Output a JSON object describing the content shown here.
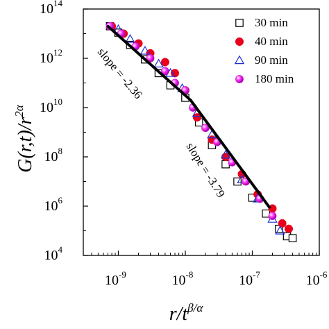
{
  "chart_data": {
    "type": "scatter",
    "xscale": "log",
    "yscale": "log",
    "xlim": [
      3e-10,
      1e-06
    ],
    "ylim": [
      10000.0,
      100000000000000.0
    ],
    "grid": false,
    "legend_placement": "top-right",
    "xlabel": {
      "main": "r/t",
      "sup": "β/α"
    },
    "ylabel": {
      "main": "G(r,t)/r",
      "sup": "2α"
    },
    "x_ticks": [
      {
        "value": 1e-09,
        "base": "10",
        "exp": "-9"
      },
      {
        "value": 1e-08,
        "base": "10",
        "exp": "-8"
      },
      {
        "value": 1e-07,
        "base": "10",
        "exp": "-7"
      },
      {
        "value": 1e-06,
        "base": "10",
        "exp": "-6"
      }
    ],
    "y_ticks": [
      {
        "value": 10000.0,
        "base": "10",
        "exp": "4"
      },
      {
        "value": 1000000.0,
        "base": "10",
        "exp": "6"
      },
      {
        "value": 100000000.0,
        "base": "10",
        "exp": "8"
      },
      {
        "value": 10000000000.0,
        "base": "10",
        "exp": "10"
      },
      {
        "value": 1000000000000.0,
        "base": "10",
        "exp": "12"
      },
      {
        "value": 100000000000000.0,
        "base": "10",
        "exp": "14"
      }
    ],
    "series": [
      {
        "name": "30 min",
        "marker": "open-square",
        "color": "#000000",
        "x": [
          7.5e-10,
          1e-09,
          1.5e-09,
          2.5e-09,
          4e-09,
          6e-09,
          1e-08,
          1.6e-08,
          2.5e-08,
          4e-08,
          6e-08,
          1e-07,
          1.6e-07,
          2.5e-07,
          3.3e-07,
          4e-07
        ],
        "y": [
          20000000000000.0,
          11000000000000.0,
          3500000000000.0,
          900000000000.0,
          250000000000.0,
          80000000000.0,
          25000000000.0,
          2500000000.0,
          300000000.0,
          50000000.0,
          10000000.0,
          2200000.0,
          500000.0,
          120000.0,
          60000.0,
          50000.0
        ]
      },
      {
        "name": "40 min",
        "marker": "filled-circle",
        "color": "#e8001c",
        "x": [
          8e-10,
          1.2e-09,
          2e-09,
          3e-09,
          5e-09,
          7e-09,
          1e-08,
          1.5e-08,
          2.5e-08,
          4e-08,
          7e-08,
          1.2e-07,
          2e-07,
          2.8e-07,
          3.5e-07
        ],
        "y": [
          20000000000000.0,
          10000000000000.0,
          4000000000000.0,
          1600000000000.0,
          700000000000.0,
          250000000000.0,
          50000000000.0,
          4000000000.0,
          500000000.0,
          100000000.0,
          20000000.0,
          3000000.0,
          800000.0,
          200000.0,
          120000.0
        ]
      },
      {
        "name": "90 min",
        "marker": "open-triangle",
        "color": "#2030d8",
        "x": [
          1e-09,
          1.5e-09,
          2.5e-09,
          4e-09,
          6e-09,
          9e-09,
          1.5e-08,
          2.5e-08,
          4e-08,
          7e-08,
          1.2e-07,
          2e-07,
          2.6e-07
        ],
        "y": [
          15000000000000.0,
          6000000000000.0,
          2000000000000.0,
          600000000000.0,
          250000000000.0,
          60000000000.0,
          6000000000.0,
          800000000.0,
          120000000.0,
          12000000.0,
          2000000.0,
          300000.0,
          100000.0
        ]
      },
      {
        "name": "180 min",
        "marker": "shaded-circle",
        "color": "#ff33ff",
        "x": [
          7.5e-10,
          1.1e-09,
          1.8e-09,
          3e-09,
          5e-09,
          7e-09,
          1e-08,
          1.3e-08,
          2e-08,
          3e-08,
          5e-08,
          8e-08,
          1.3e-07,
          2e-07
        ],
        "y": [
          20000000000000.0,
          10000000000000.0,
          3000000000000.0,
          1000000000000.0,
          300000000000.0,
          100000000000.0,
          50000000000.0,
          10000000000.0,
          1500000000.0,
          400000000.0,
          60000000.0,
          10000000.0,
          2000000.0,
          400000.0
        ]
      }
    ],
    "fit_lines": [
      {
        "slope_label": "slope = -2.36",
        "x": [
          7e-10,
          1.2e-08
        ],
        "y": [
          20000000000000.0,
          20000000000.0
        ]
      },
      {
        "slope_label": "slope = -3.79",
        "x": [
          1.2e-08,
          1.8e-07
        ],
        "y": [
          20000000000.0,
          900000.0
        ]
      }
    ]
  }
}
